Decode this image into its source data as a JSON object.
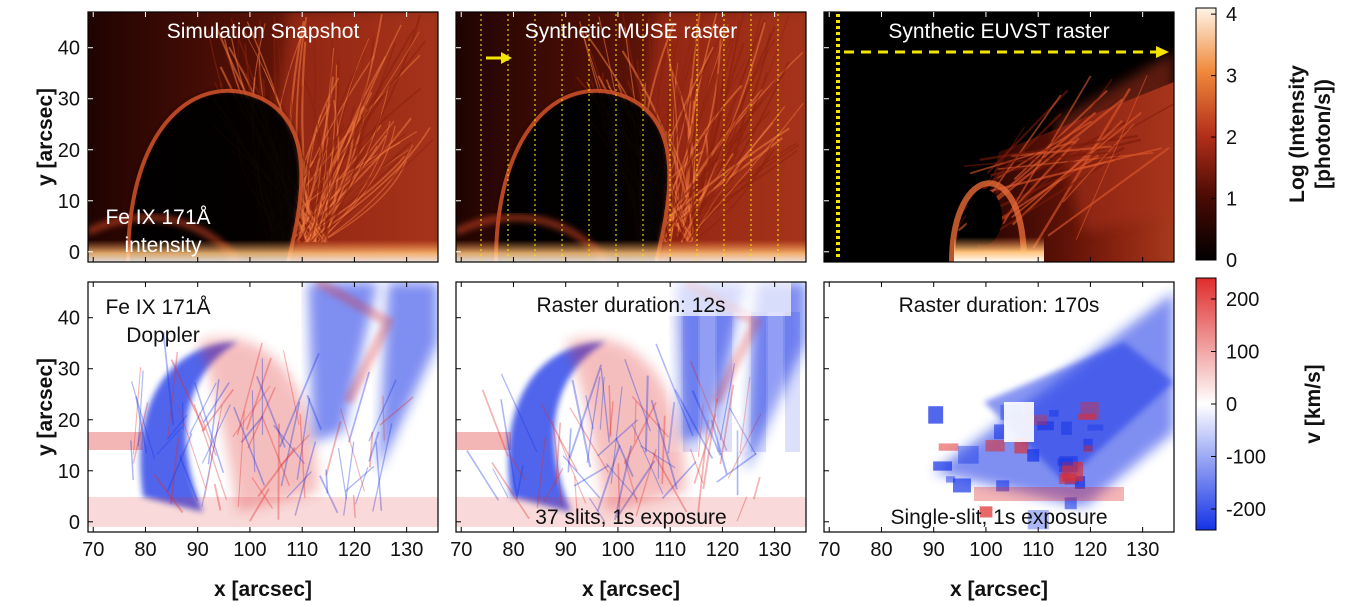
{
  "chart_data": {
    "type": "heatmap",
    "rows": [
      {
        "name": "intensity",
        "colorbar": {
          "label_line1": "Log (Intensity",
          "label_line2": "[photon/s])",
          "ticks": [
            {
              "label": "0",
              "value": 0
            },
            {
              "label": "1",
              "value": 1
            },
            {
              "label": "2",
              "value": 2
            },
            {
              "label": "3",
              "value": 3
            },
            {
              "label": "4",
              "value": 4
            }
          ],
          "range": [
            0,
            4.1
          ]
        },
        "panels": [
          {
            "title": "Simulation Snapshot",
            "annotations": [
              "Fe IX 171Å",
              "intensity"
            ]
          },
          {
            "title": "Synthetic MUSE raster",
            "annotations": []
          },
          {
            "title": "Synthetic EUVST raster",
            "annotations": []
          }
        ]
      },
      {
        "name": "doppler",
        "colorbar": {
          "label": "v [km/s]",
          "ticks": [
            {
              "label": "200",
              "value": 200
            },
            {
              "label": "100",
              "value": 100
            },
            {
              "label": "0",
              "value": 0
            },
            {
              "label": "-100",
              "value": -100
            },
            {
              "label": "-200",
              "value": -200
            }
          ],
          "range": [
            -240,
            240
          ]
        },
        "panels": [
          {
            "annotations": [
              "Fe IX 171Å",
              "Doppler"
            ]
          },
          {
            "annotations": [
              "Raster duration: 12s",
              "37 slits, 1s exposure"
            ]
          },
          {
            "annotations": [
              "Raster duration: 170s",
              "Single-slit, 1s exposure"
            ]
          }
        ]
      }
    ],
    "xlabel": "x [arcsec]",
    "ylabel": "y [arcsec]",
    "x_ticks": [
      "70",
      "80",
      "90",
      "100",
      "110",
      "120",
      "130"
    ],
    "x_tick_values": [
      70,
      80,
      90,
      100,
      110,
      120,
      130
    ],
    "y_ticks": [
      "0",
      "10",
      "20",
      "30",
      "40"
    ],
    "y_tick_values": [
      0,
      10,
      20,
      30,
      40
    ],
    "xlim": [
      69,
      136
    ],
    "ylim": [
      -2,
      47
    ],
    "colors": {
      "intensity_low": "#000000",
      "intensity_mid": "#b5301a",
      "intensity_high": "#fff4e6",
      "doppler_red": "#e02c2c",
      "doppler_white": "#ffffff",
      "doppler_blue": "#1432e6",
      "raster_marker": "#f2e600"
    }
  }
}
